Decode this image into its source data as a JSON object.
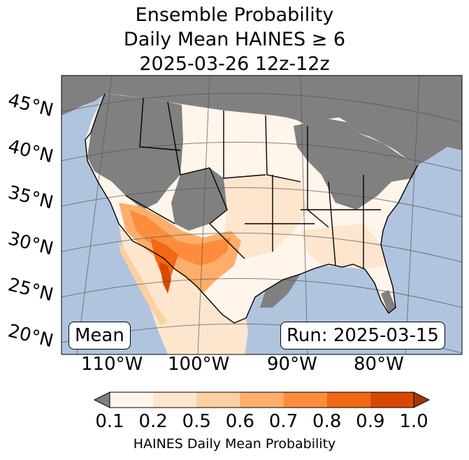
{
  "title": {
    "line1": "Ensemble Probability",
    "line2": "Daily Mean HAINES ≥ 6",
    "line3": "2025-03-26 12z-12z"
  },
  "map": {
    "lat_labels": [
      "45°N",
      "40°N",
      "35°N",
      "30°N",
      "25°N",
      "20°N"
    ],
    "lon_labels": [
      "110°W",
      "100°W",
      "90°W",
      "80°W"
    ],
    "stat_label": "Mean",
    "run_label": "Run: 2025-03-15",
    "colors": {
      "ocean": "#b0c4de",
      "no_data": "#808080",
      "border": "#000000"
    }
  },
  "colorbar": {
    "ticks": [
      "0.1",
      "0.2",
      "0.5",
      "0.6",
      "0.7",
      "0.8",
      "0.9",
      "1.0"
    ],
    "colors": [
      "#fff5eb",
      "#fee6ce",
      "#fdd0a2",
      "#fdae6b",
      "#fd8d3c",
      "#f16913",
      "#d94801"
    ],
    "under_color": "#808080",
    "over_color": "#a63603",
    "label": "HAINES Daily Mean Probability"
  }
}
